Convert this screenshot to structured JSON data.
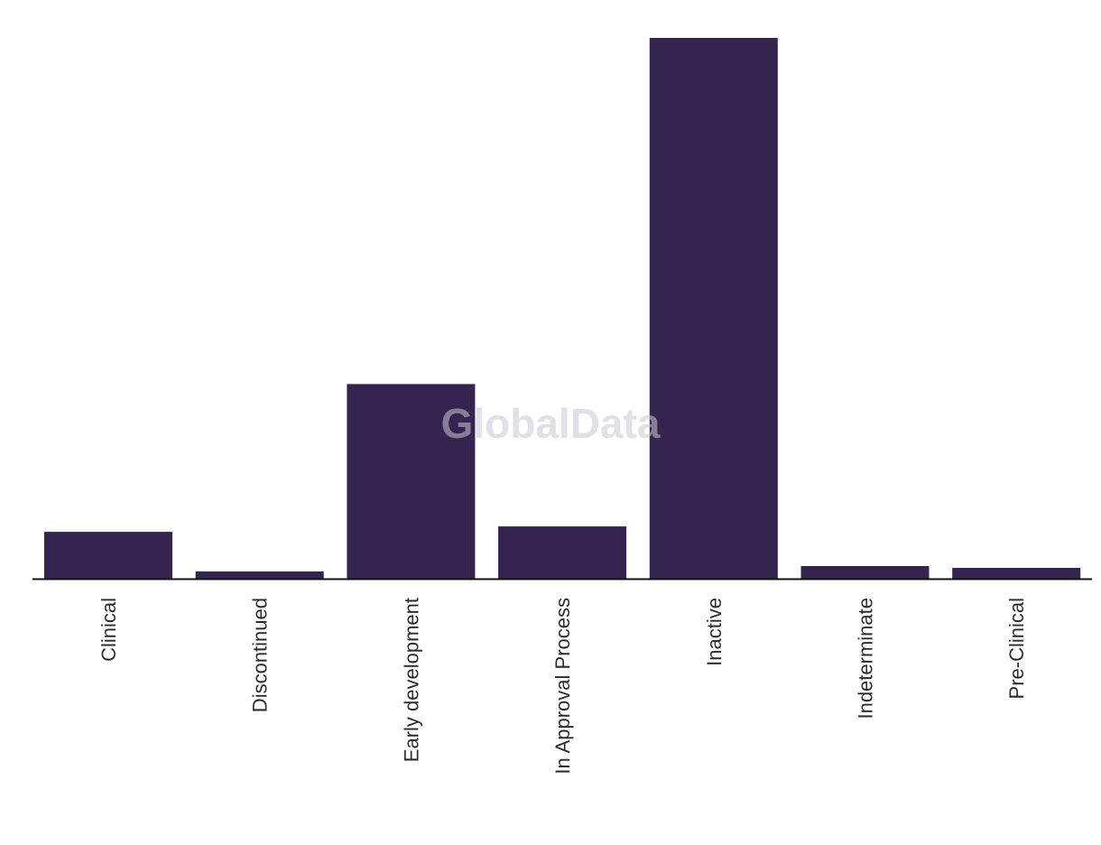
{
  "chart_data": {
    "type": "bar",
    "title": "",
    "xlabel": "",
    "ylabel": "",
    "categories": [
      "Clinical",
      "Discontinued",
      "Early development",
      "In Approval Process",
      "Inactive",
      "Indeterminate",
      "Pre-Clinical"
    ],
    "values": [
      26,
      4,
      108,
      29,
      300,
      7,
      6
    ],
    "ylim": [
      0,
      300
    ],
    "grid": false,
    "legend": "none",
    "bar_color": "#35244f",
    "axis_color": "#111111"
  },
  "watermark": "GlobalData"
}
